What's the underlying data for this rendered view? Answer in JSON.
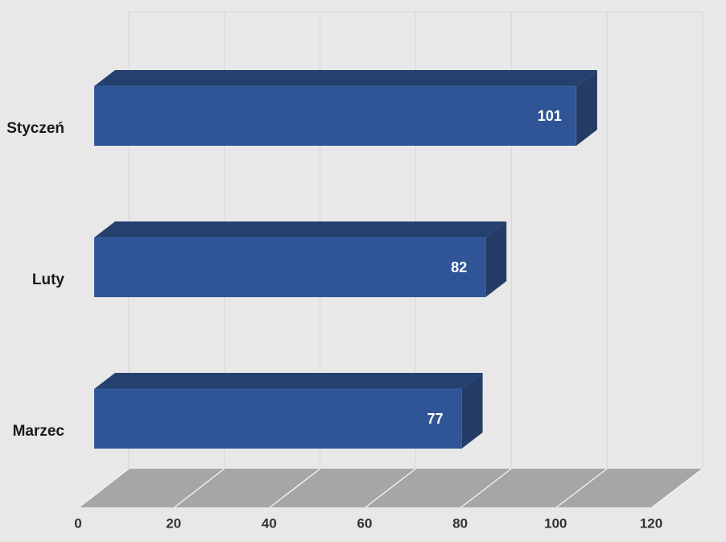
{
  "chart_data": {
    "type": "bar",
    "orientation": "horizontal",
    "style": "3d-oblique",
    "title": "",
    "categories": [
      "Styczeń",
      "Luty",
      "Marzec"
    ],
    "values": [
      101,
      82,
      77
    ],
    "data_labels": [
      "101",
      "82",
      "77"
    ],
    "xlabel": "",
    "ylabel": "",
    "xlim": [
      0,
      120
    ],
    "xticks": [
      "0",
      "20",
      "40",
      "60",
      "80",
      "100",
      "120"
    ],
    "xtick_values": [
      0,
      20,
      40,
      60,
      80,
      100,
      120
    ],
    "grid": true,
    "legend": "none",
    "colors": {
      "background": "#E8E8E8",
      "wall_line": "#D9D9D9",
      "floor": "#A6A6A6",
      "floor_line": "#F7F7F7",
      "bar_front": "#2F5597",
      "bar_top": "#24406E",
      "bar_side": "#253C66",
      "bar_edge_highlight": "#4A6FB0",
      "value_label": "#FFFFFF",
      "category_label": "#1A1A1A",
      "tick_label": "#333333"
    }
  }
}
